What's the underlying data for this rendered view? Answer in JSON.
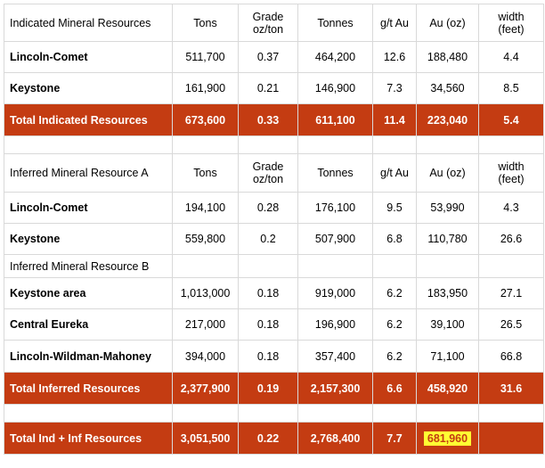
{
  "colors": {
    "header_fill": "#c43c12",
    "header_text": "#ffffff",
    "highlight_fill": "#ffff33"
  },
  "table": {
    "rows": [
      {
        "type": "header",
        "bold": true,
        "cells": [
          "Indicated Mineral Resources",
          "Tons",
          "Grade\noz/ton",
          "Tonnes",
          "g/t Au",
          "Au (oz)",
          "width\n(feet)"
        ]
      },
      {
        "type": "data",
        "cells": [
          "Lincoln-Comet",
          "511,700",
          "0.37",
          "464,200",
          "12.6",
          "188,480",
          "4.4"
        ]
      },
      {
        "type": "data",
        "cells": [
          "Keystone",
          "161,900",
          "0.21",
          "146,900",
          "7.3",
          "34,560",
          "8.5"
        ]
      },
      {
        "type": "total",
        "cells": [
          "Total Indicated Resources",
          "673,600",
          "0.33",
          "611,100",
          "11.4",
          "223,040",
          "5.4"
        ]
      },
      {
        "type": "blank",
        "cells": []
      },
      {
        "type": "header",
        "bold": false,
        "cells": [
          "Inferred Mineral Resource A",
          "Tons",
          "Grade\noz/ton",
          "Tonnes",
          "g/t Au",
          "Au (oz)",
          "width\n(feet)"
        ]
      },
      {
        "type": "data",
        "cells": [
          "Lincoln-Comet",
          "194,100",
          "0.28",
          "176,100",
          "9.5",
          "53,990",
          "4.3"
        ]
      },
      {
        "type": "data",
        "cells": [
          "Keystone",
          "559,800",
          "0.2",
          "507,900",
          "6.8",
          "110,780",
          "26.6"
        ]
      },
      {
        "type": "header",
        "bold": false,
        "cells": [
          "Inferred Mineral Resource B",
          "",
          "",
          "",
          "",
          "",
          ""
        ]
      },
      {
        "type": "data",
        "cells": [
          "Keystone area",
          "1,013,000",
          "0.18",
          "919,000",
          "6.2",
          "183,950",
          "27.1"
        ]
      },
      {
        "type": "data",
        "cells": [
          "Central Eureka",
          "217,000",
          "0.18",
          "196,900",
          "6.2",
          "39,100",
          "26.5"
        ]
      },
      {
        "type": "data",
        "cells": [
          "Lincoln-Wildman-Mahoney",
          "394,000",
          "0.18",
          "357,400",
          "6.2",
          "71,100",
          "66.8"
        ]
      },
      {
        "type": "total",
        "cells": [
          "Total Inferred Resources",
          "2,377,900",
          "0.19",
          "2,157,300",
          "6.6",
          "458,920",
          "31.6"
        ]
      },
      {
        "type": "blank",
        "cells": []
      },
      {
        "type": "total",
        "highlight_col": 5,
        "cells": [
          "Total Ind + Inf Resources",
          "3,051,500",
          "0.22",
          "2,768,400",
          "7.7",
          "681,960",
          ""
        ]
      }
    ]
  }
}
